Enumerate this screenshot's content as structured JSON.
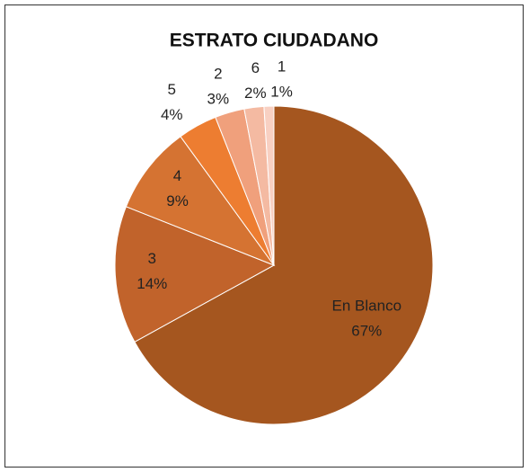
{
  "chart_data": {
    "type": "pie",
    "title": "ESTRATO CIUDADANO",
    "categories": [
      "En Blanco",
      "3",
      "4",
      "5",
      "2",
      "6",
      "1"
    ],
    "values": [
      67,
      14,
      9,
      4,
      3,
      2,
      1
    ],
    "value_labels": [
      "67%",
      "14%",
      "9%",
      "4%",
      "3%",
      "2%",
      "1%"
    ],
    "colors": [
      "#a5561f",
      "#c1632b",
      "#d57332",
      "#ed7d31",
      "#f0a07c",
      "#f4baa2",
      "#f8d0c2"
    ]
  }
}
